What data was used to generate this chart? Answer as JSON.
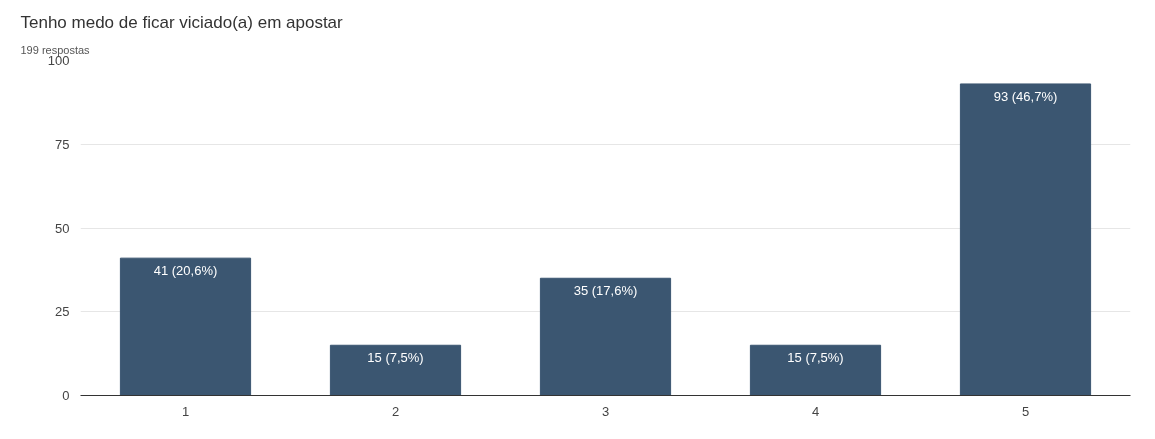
{
  "chart_data": {
    "type": "bar",
    "title": "Tenho medo de ficar viciado(a) em apostar",
    "subtitle": "199 respostas",
    "categories": [
      "1",
      "2",
      "3",
      "4",
      "5"
    ],
    "values": [
      41,
      15,
      35,
      15,
      93
    ],
    "value_labels": [
      "41 (20,6%)",
      "15 (7,5%)",
      "35 (17,6%)",
      "15 (7,5%)",
      "93 (46,7%)"
    ],
    "color": "#3b5671",
    "ylim": [
      0,
      100
    ],
    "yticks": [
      0,
      25,
      50,
      75,
      100
    ],
    "grid": "y"
  }
}
